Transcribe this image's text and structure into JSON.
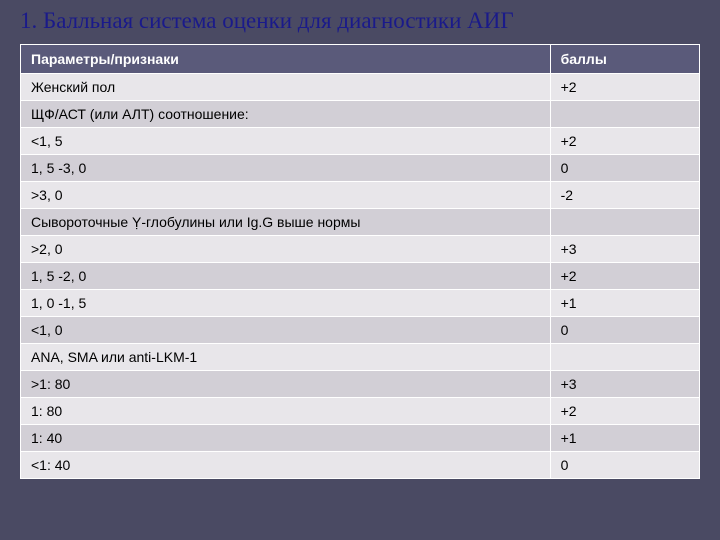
{
  "title": "1. Балльная система оценки для диагностики АИГ",
  "table": {
    "header": {
      "param": "Параметры/признаки",
      "score": "баллы"
    },
    "rows": [
      {
        "param": "Женский пол",
        "score": "+2"
      },
      {
        "param": "ЩФ/АСТ (или АЛТ) соотношение:",
        "score": ""
      },
      {
        "param": "<1, 5",
        "score": "+2"
      },
      {
        "param": "1, 5 -3, 0",
        "score": "0"
      },
      {
        "param": ">3, 0",
        "score": "-2"
      },
      {
        "param": "Сывороточные Ỵ-глобулины или Ig.G выше нормы",
        "score": ""
      },
      {
        "param": ">2, 0",
        "score": "+3"
      },
      {
        "param": "1, 5 -2, 0",
        "score": "+2"
      },
      {
        "param": "1, 0 -1, 5",
        "score": "+1"
      },
      {
        "param": "<1, 0",
        "score": "0"
      },
      {
        "param": "ANA, SMA или anti-LKM-1",
        "score": ""
      },
      {
        "param": ">1: 80",
        "score": "+3"
      },
      {
        "param": "1: 80",
        "score": "+2"
      },
      {
        "param": "1: 40",
        "score": "+1"
      },
      {
        "param": "<1: 40",
        "score": "0"
      }
    ]
  },
  "colors": {
    "slide_bg": "#4a4a63",
    "title_color": "#1a1a8a",
    "header_bg": "#5a5a7a",
    "row_odd": "#e8e6ea",
    "row_even": "#d2cfd6"
  }
}
